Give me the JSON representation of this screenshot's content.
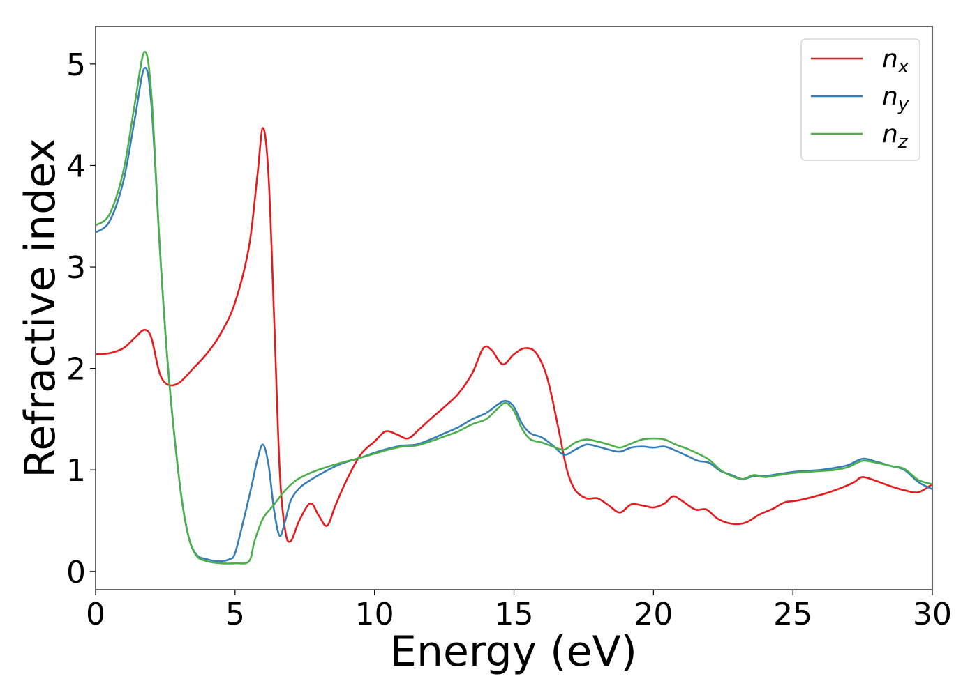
{
  "chart_data": {
    "type": "line",
    "title": "",
    "xlabel": "Energy (eV)",
    "ylabel": "Refractive index",
    "xlim": [
      0,
      30
    ],
    "ylim": [
      -0.18,
      5.37
    ],
    "xticks": [
      0,
      5,
      10,
      15,
      20,
      25,
      30
    ],
    "yticks": [
      0,
      1,
      2,
      3,
      4,
      5
    ],
    "grid": false,
    "legend_position": "top-right",
    "series": [
      {
        "name": "n",
        "sub": "x",
        "color": "#e41a1c",
        "points": [
          [
            0,
            2.14
          ],
          [
            0.5,
            2.15
          ],
          [
            1.0,
            2.2
          ],
          [
            1.4,
            2.3
          ],
          [
            1.75,
            2.38
          ],
          [
            2.0,
            2.3
          ],
          [
            2.3,
            1.95
          ],
          [
            2.6,
            1.84
          ],
          [
            3.0,
            1.86
          ],
          [
            3.5,
            2.0
          ],
          [
            4.0,
            2.15
          ],
          [
            4.5,
            2.35
          ],
          [
            5.0,
            2.65
          ],
          [
            5.5,
            3.2
          ],
          [
            5.8,
            3.9
          ],
          [
            6.0,
            4.37
          ],
          [
            6.2,
            3.9
          ],
          [
            6.4,
            2.5
          ],
          [
            6.6,
            1.0
          ],
          [
            6.8,
            0.4
          ],
          [
            7.0,
            0.3
          ],
          [
            7.3,
            0.5
          ],
          [
            7.7,
            0.67
          ],
          [
            8.0,
            0.55
          ],
          [
            8.3,
            0.45
          ],
          [
            8.6,
            0.65
          ],
          [
            9.0,
            0.9
          ],
          [
            9.5,
            1.15
          ],
          [
            10.0,
            1.28
          ],
          [
            10.4,
            1.38
          ],
          [
            10.8,
            1.35
          ],
          [
            11.2,
            1.31
          ],
          [
            11.6,
            1.4
          ],
          [
            12.0,
            1.5
          ],
          [
            12.5,
            1.62
          ],
          [
            13.0,
            1.75
          ],
          [
            13.5,
            1.95
          ],
          [
            13.9,
            2.2
          ],
          [
            14.2,
            2.18
          ],
          [
            14.6,
            2.04
          ],
          [
            15.0,
            2.14
          ],
          [
            15.4,
            2.2
          ],
          [
            15.8,
            2.15
          ],
          [
            16.2,
            1.9
          ],
          [
            16.6,
            1.4
          ],
          [
            16.9,
            1.0
          ],
          [
            17.2,
            0.8
          ],
          [
            17.6,
            0.72
          ],
          [
            18.0,
            0.72
          ],
          [
            18.4,
            0.65
          ],
          [
            18.8,
            0.58
          ],
          [
            19.2,
            0.66
          ],
          [
            19.6,
            0.65
          ],
          [
            20.0,
            0.63
          ],
          [
            20.4,
            0.67
          ],
          [
            20.7,
            0.74
          ],
          [
            21.0,
            0.7
          ],
          [
            21.5,
            0.61
          ],
          [
            21.9,
            0.61
          ],
          [
            22.3,
            0.52
          ],
          [
            22.8,
            0.47
          ],
          [
            23.3,
            0.48
          ],
          [
            23.8,
            0.56
          ],
          [
            24.3,
            0.62
          ],
          [
            24.7,
            0.68
          ],
          [
            25.2,
            0.7
          ],
          [
            25.8,
            0.74
          ],
          [
            26.3,
            0.78
          ],
          [
            26.8,
            0.83
          ],
          [
            27.2,
            0.88
          ],
          [
            27.5,
            0.93
          ],
          [
            28.0,
            0.89
          ],
          [
            28.5,
            0.84
          ],
          [
            29.0,
            0.8
          ],
          [
            29.5,
            0.78
          ],
          [
            30.0,
            0.86
          ]
        ]
      },
      {
        "name": "n",
        "sub": "y",
        "color": "#377eb8",
        "points": [
          [
            0,
            3.34
          ],
          [
            0.5,
            3.45
          ],
          [
            1.0,
            3.85
          ],
          [
            1.4,
            4.45
          ],
          [
            1.75,
            4.96
          ],
          [
            2.0,
            4.6
          ],
          [
            2.3,
            3.2
          ],
          [
            2.6,
            2.0
          ],
          [
            3.0,
            0.9
          ],
          [
            3.3,
            0.38
          ],
          [
            3.6,
            0.17
          ],
          [
            4.0,
            0.12
          ],
          [
            4.4,
            0.1
          ],
          [
            4.8,
            0.12
          ],
          [
            5.0,
            0.18
          ],
          [
            5.3,
            0.5
          ],
          [
            5.6,
            0.85
          ],
          [
            5.8,
            1.1
          ],
          [
            6.0,
            1.25
          ],
          [
            6.2,
            1.05
          ],
          [
            6.4,
            0.6
          ],
          [
            6.6,
            0.35
          ],
          [
            6.8,
            0.5
          ],
          [
            7.0,
            0.7
          ],
          [
            7.3,
            0.82
          ],
          [
            7.7,
            0.9
          ],
          [
            8.2,
            0.98
          ],
          [
            8.8,
            1.06
          ],
          [
            9.5,
            1.12
          ],
          [
            10.0,
            1.17
          ],
          [
            10.5,
            1.21
          ],
          [
            11.0,
            1.24
          ],
          [
            11.5,
            1.25
          ],
          [
            12.0,
            1.3
          ],
          [
            12.5,
            1.36
          ],
          [
            13.0,
            1.42
          ],
          [
            13.5,
            1.5
          ],
          [
            14.0,
            1.56
          ],
          [
            14.4,
            1.64
          ],
          [
            14.7,
            1.68
          ],
          [
            15.0,
            1.62
          ],
          [
            15.3,
            1.45
          ],
          [
            15.6,
            1.36
          ],
          [
            16.0,
            1.32
          ],
          [
            16.4,
            1.24
          ],
          [
            16.8,
            1.15
          ],
          [
            17.2,
            1.2
          ],
          [
            17.6,
            1.25
          ],
          [
            18.0,
            1.23
          ],
          [
            18.4,
            1.2
          ],
          [
            18.8,
            1.18
          ],
          [
            19.2,
            1.22
          ],
          [
            19.6,
            1.23
          ],
          [
            20.0,
            1.22
          ],
          [
            20.4,
            1.23
          ],
          [
            20.8,
            1.19
          ],
          [
            21.2,
            1.14
          ],
          [
            21.6,
            1.09
          ],
          [
            22.0,
            1.07
          ],
          [
            22.4,
            0.99
          ],
          [
            22.8,
            0.95
          ],
          [
            23.2,
            0.91
          ],
          [
            23.6,
            0.94
          ],
          [
            24.0,
            0.94
          ],
          [
            24.5,
            0.96
          ],
          [
            25.0,
            0.98
          ],
          [
            25.5,
            0.99
          ],
          [
            26.0,
            1.0
          ],
          [
            26.5,
            1.02
          ],
          [
            27.0,
            1.05
          ],
          [
            27.5,
            1.11
          ],
          [
            28.0,
            1.08
          ],
          [
            28.5,
            1.04
          ],
          [
            29.0,
            1.0
          ],
          [
            29.5,
            0.88
          ],
          [
            30.0,
            0.81
          ]
        ]
      },
      {
        "name": "n",
        "sub": "z",
        "color": "#4daf4a",
        "points": [
          [
            0,
            3.41
          ],
          [
            0.5,
            3.52
          ],
          [
            1.0,
            3.95
          ],
          [
            1.4,
            4.6
          ],
          [
            1.75,
            5.12
          ],
          [
            2.0,
            4.7
          ],
          [
            2.3,
            3.2
          ],
          [
            2.6,
            2.0
          ],
          [
            3.0,
            0.9
          ],
          [
            3.3,
            0.38
          ],
          [
            3.6,
            0.16
          ],
          [
            4.0,
            0.1
          ],
          [
            4.5,
            0.08
          ],
          [
            5.0,
            0.08
          ],
          [
            5.5,
            0.1
          ],
          [
            5.7,
            0.3
          ],
          [
            6.0,
            0.52
          ],
          [
            6.4,
            0.66
          ],
          [
            6.8,
            0.8
          ],
          [
            7.2,
            0.9
          ],
          [
            7.7,
            0.97
          ],
          [
            8.2,
            1.02
          ],
          [
            8.8,
            1.07
          ],
          [
            9.5,
            1.12
          ],
          [
            10.0,
            1.16
          ],
          [
            10.5,
            1.2
          ],
          [
            11.0,
            1.23
          ],
          [
            11.5,
            1.24
          ],
          [
            12.0,
            1.28
          ],
          [
            12.5,
            1.33
          ],
          [
            13.0,
            1.38
          ],
          [
            13.5,
            1.45
          ],
          [
            14.0,
            1.5
          ],
          [
            14.4,
            1.6
          ],
          [
            14.7,
            1.66
          ],
          [
            15.0,
            1.58
          ],
          [
            15.3,
            1.4
          ],
          [
            15.6,
            1.3
          ],
          [
            16.0,
            1.27
          ],
          [
            16.4,
            1.23
          ],
          [
            16.8,
            1.2
          ],
          [
            17.2,
            1.27
          ],
          [
            17.6,
            1.3
          ],
          [
            18.0,
            1.28
          ],
          [
            18.4,
            1.25
          ],
          [
            18.8,
            1.22
          ],
          [
            19.2,
            1.26
          ],
          [
            19.6,
            1.3
          ],
          [
            20.0,
            1.31
          ],
          [
            20.4,
            1.3
          ],
          [
            20.8,
            1.25
          ],
          [
            21.2,
            1.21
          ],
          [
            21.6,
            1.16
          ],
          [
            22.0,
            1.1
          ],
          [
            22.4,
            1.0
          ],
          [
            22.8,
            0.94
          ],
          [
            23.2,
            0.91
          ],
          [
            23.6,
            0.95
          ],
          [
            24.0,
            0.93
          ],
          [
            24.5,
            0.95
          ],
          [
            25.0,
            0.97
          ],
          [
            25.5,
            0.98
          ],
          [
            26.0,
            0.99
          ],
          [
            26.5,
            1.0
          ],
          [
            27.0,
            1.03
          ],
          [
            27.5,
            1.09
          ],
          [
            28.0,
            1.07
          ],
          [
            28.5,
            1.04
          ],
          [
            29.0,
            1.01
          ],
          [
            29.5,
            0.9
          ],
          [
            30.0,
            0.86
          ]
        ]
      }
    ]
  }
}
